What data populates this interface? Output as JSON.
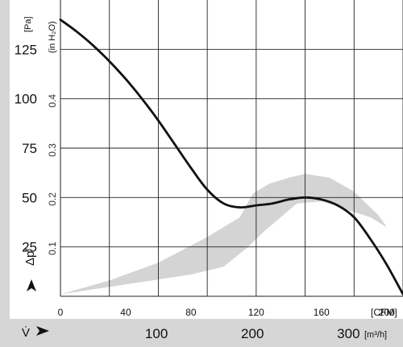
{
  "chart_data": {
    "type": "line",
    "title": "",
    "units": {
      "pressure_pa": "[Pa]",
      "pressure_inh2o": "(in H₂O)",
      "flow_cfm": "[CFM]",
      "flow_m3h": "[m³/h]"
    },
    "axis_symbols": {
      "y": "Δpᶠ",
      "x": "V̇"
    },
    "x_cfm": {
      "range": [
        0,
        210
      ],
      "ticks": [
        "0",
        "40",
        "80",
        "120",
        "160",
        "200"
      ],
      "grid_step": 30
    },
    "x_m3h": {
      "ticks": [
        {
          "value": 100,
          "label": "100"
        },
        {
          "value": 200,
          "label": "200"
        },
        {
          "value": 300,
          "label": "300"
        }
      ]
    },
    "y_pa": {
      "range": [
        0,
        150
      ],
      "ticks": [
        "125",
        "100",
        "75",
        "50",
        "25"
      ],
      "values": [
        125,
        100,
        75,
        50,
        25
      ]
    },
    "y_inh2o": {
      "ticks": [
        {
          "value": 0.1,
          "label": "0.1"
        },
        {
          "value": 0.2,
          "label": "0.2"
        },
        {
          "value": 0.3,
          "label": "0.3"
        },
        {
          "value": 0.4,
          "label": "0.4"
        }
      ]
    },
    "grid": true,
    "series": [
      {
        "color": "#111111",
        "x": [
          0,
          10,
          20,
          30,
          40,
          50,
          60,
          70,
          80,
          90,
          100,
          110,
          120,
          130,
          140,
          150,
          160,
          170,
          180,
          190,
          200,
          210
        ],
        "y": [
          140,
          134,
          127,
          119,
          110,
          100,
          89,
          77,
          65,
          54,
          47,
          45,
          46,
          47,
          49,
          50,
          49,
          46,
          40,
          29,
          16,
          1
        ]
      }
    ],
    "operating_region": {
      "color": "#d4d4d4",
      "points": [
        [
          0,
          1
        ],
        [
          40,
          6
        ],
        [
          80,
          11
        ],
        [
          100,
          15
        ],
        [
          115,
          25
        ],
        [
          125,
          33
        ],
        [
          135,
          40
        ],
        [
          145,
          47
        ],
        [
          160,
          48
        ],
        [
          175,
          44
        ],
        [
          190,
          40
        ],
        [
          200,
          35
        ],
        [
          195,
          41
        ],
        [
          180,
          53
        ],
        [
          165,
          60
        ],
        [
          150,
          62
        ],
        [
          140,
          60
        ],
        [
          128,
          57
        ],
        [
          118,
          52
        ],
        [
          110,
          40
        ],
        [
          90,
          30
        ],
        [
          60,
          17
        ],
        [
          30,
          8
        ],
        [
          0,
          1
        ]
      ]
    }
  }
}
